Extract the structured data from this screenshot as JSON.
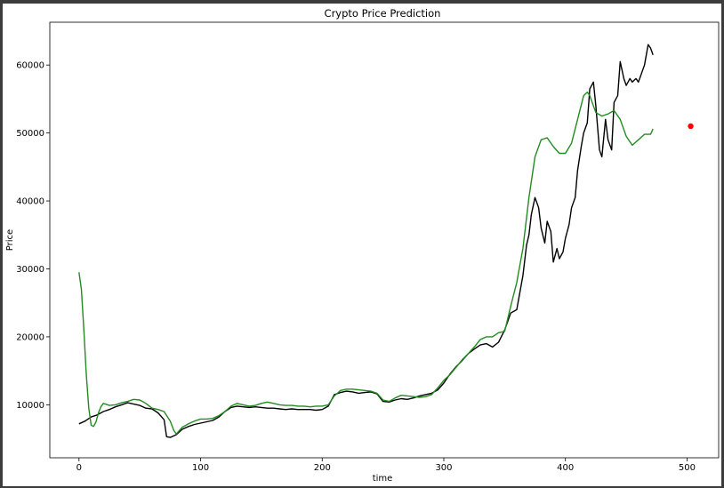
{
  "chart_data": {
    "type": "line",
    "title": "Crypto Price Prediction",
    "xlabel": "time",
    "ylabel": "Price",
    "xlim": [
      -24,
      526
    ],
    "ylim": [
      2200,
      66300
    ],
    "xticks": [
      0,
      100,
      200,
      300,
      400,
      500
    ],
    "yticks": [
      10000,
      20000,
      30000,
      40000,
      50000,
      60000
    ],
    "grid": false,
    "legend": "none",
    "series": [
      {
        "color": "#000000",
        "x": [
          0,
          5,
          10,
          15,
          20,
          25,
          30,
          35,
          40,
          45,
          50,
          55,
          60,
          65,
          70,
          72,
          75,
          80,
          85,
          90,
          95,
          100,
          105,
          110,
          115,
          120,
          125,
          130,
          135,
          140,
          145,
          150,
          155,
          160,
          165,
          170,
          175,
          180,
          185,
          190,
          195,
          200,
          205,
          210,
          215,
          220,
          225,
          230,
          235,
          240,
          245,
          250,
          255,
          260,
          265,
          270,
          275,
          280,
          285,
          290,
          295,
          300,
          305,
          310,
          315,
          320,
          325,
          330,
          335,
          340,
          345,
          350,
          355,
          360,
          365,
          368,
          370,
          372,
          375,
          378,
          380,
          383,
          385,
          388,
          390,
          393,
          395,
          398,
          400,
          403,
          405,
          408,
          410,
          413,
          415,
          418,
          420,
          423,
          425,
          428,
          430,
          433,
          435,
          438,
          440,
          443,
          445,
          448,
          450,
          453,
          455,
          458,
          460,
          463,
          465,
          468,
          470,
          472
        ],
        "values": [
          7200,
          7600,
          8200,
          8500,
          9000,
          9300,
          9700,
          10000,
          10300,
          10100,
          9900,
          9500,
          9400,
          8800,
          7800,
          5300,
          5200,
          5600,
          6400,
          6800,
          7100,
          7300,
          7500,
          7700,
          8200,
          9000,
          9600,
          9800,
          9700,
          9600,
          9700,
          9600,
          9500,
          9500,
          9400,
          9300,
          9400,
          9300,
          9300,
          9300,
          9200,
          9300,
          9800,
          11500,
          11800,
          12000,
          11900,
          11700,
          11800,
          11900,
          11600,
          10500,
          10400,
          10700,
          10900,
          10800,
          11000,
          11300,
          11500,
          11700,
          12200,
          13200,
          14500,
          15600,
          16500,
          17500,
          18200,
          18800,
          19000,
          18500,
          19200,
          21000,
          23500,
          24000,
          29000,
          33500,
          35000,
          38000,
          40500,
          39000,
          36000,
          33800,
          37000,
          35500,
          31000,
          33000,
          31500,
          32500,
          34500,
          36500,
          39000,
          40500,
          44500,
          48000,
          50000,
          51500,
          56500,
          57500,
          54000,
          47500,
          46500,
          52000,
          49000,
          47500,
          54500,
          55500,
          60500,
          58000,
          57000,
          58000,
          57500,
          58000,
          57500,
          59000,
          60000,
          63000,
          62500,
          61500
        ]
      },
      {
        "color": "#228b22",
        "x": [
          0,
          2,
          4,
          6,
          8,
          10,
          12,
          14,
          16,
          18,
          20,
          25,
          30,
          35,
          40,
          45,
          50,
          55,
          60,
          65,
          70,
          75,
          78,
          80,
          85,
          90,
          95,
          100,
          105,
          110,
          115,
          120,
          125,
          130,
          135,
          140,
          145,
          150,
          155,
          160,
          165,
          170,
          175,
          180,
          185,
          190,
          195,
          200,
          205,
          210,
          215,
          220,
          225,
          230,
          235,
          240,
          245,
          250,
          255,
          260,
          265,
          270,
          275,
          280,
          285,
          290,
          295,
          300,
          305,
          310,
          315,
          320,
          325,
          330,
          335,
          340,
          345,
          350,
          355,
          360,
          365,
          370,
          375,
          380,
          385,
          390,
          395,
          400,
          405,
          410,
          415,
          418,
          420,
          425,
          430,
          435,
          440,
          445,
          450,
          455,
          460,
          465,
          470,
          472
        ],
        "values": [
          29500,
          27000,
          21000,
          14500,
          9500,
          7000,
          6800,
          7500,
          8800,
          9700,
          10200,
          9900,
          10000,
          10300,
          10500,
          10800,
          10700,
          10200,
          9500,
          9300,
          9000,
          7600,
          6200,
          5700,
          6700,
          7200,
          7600,
          7900,
          7900,
          8000,
          8400,
          9000,
          9800,
          10200,
          10000,
          9800,
          9900,
          10200,
          10400,
          10200,
          10000,
          9900,
          9900,
          9800,
          9800,
          9700,
          9800,
          9800,
          10000,
          11300,
          12100,
          12300,
          12300,
          12200,
          12100,
          12000,
          11700,
          10700,
          10500,
          11000,
          11400,
          11300,
          11200,
          11100,
          11200,
          11500,
          12500,
          13600,
          14400,
          15500,
          16600,
          17500,
          18500,
          19600,
          20000,
          20000,
          20600,
          20800,
          24500,
          28000,
          33000,
          40500,
          46500,
          49000,
          49300,
          48000,
          47000,
          47000,
          48500,
          52000,
          55500,
          56000,
          55500,
          53000,
          52500,
          52800,
          53300,
          52000,
          49500,
          48200,
          49000,
          49800,
          49800,
          50600
        ]
      },
      {
        "color": "#ff0000",
        "kind": "marker",
        "x": [
          503
        ],
        "values": [
          51000
        ]
      }
    ]
  }
}
